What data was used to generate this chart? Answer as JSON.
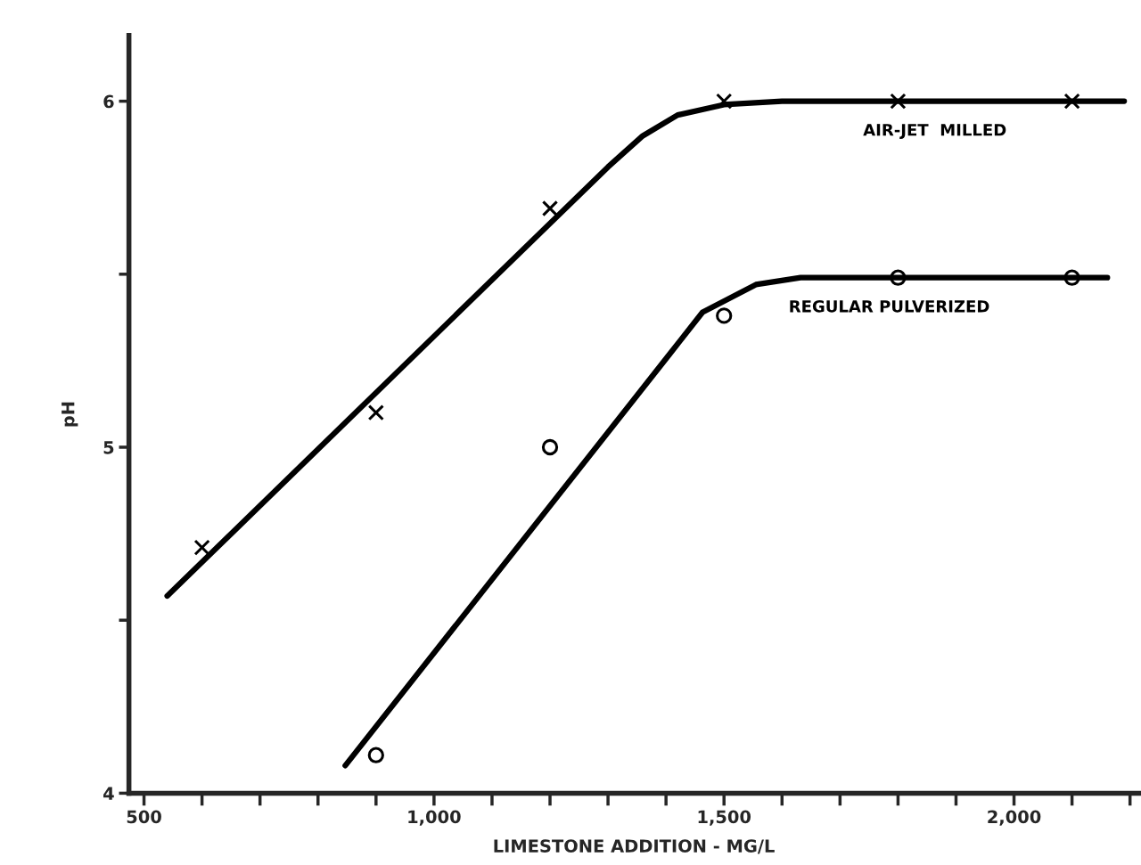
{
  "chart_data": {
    "type": "scatter",
    "xlabel": "LIMESTONE ADDITION - MG/L",
    "ylabel": "pH",
    "xlim": [
      474,
      2215
    ],
    "ylim": [
      4,
      6.19
    ],
    "xticks": [
      {
        "value": 500,
        "label": "500"
      },
      {
        "value": 600,
        "label": null
      },
      {
        "value": 700,
        "label": null
      },
      {
        "value": 800,
        "label": null
      },
      {
        "value": 900,
        "label": null
      },
      {
        "value": 1000,
        "label": "1,000"
      },
      {
        "value": 1100,
        "label": null
      },
      {
        "value": 1200,
        "label": null
      },
      {
        "value": 1300,
        "label": null
      },
      {
        "value": 1400,
        "label": null
      },
      {
        "value": 1500,
        "label": "1,500"
      },
      {
        "value": 1600,
        "label": null
      },
      {
        "value": 1700,
        "label": null
      },
      {
        "value": 1800,
        "label": null
      },
      {
        "value": 1900,
        "label": null
      },
      {
        "value": 2000,
        "label": "2,000"
      },
      {
        "value": 2100,
        "label": null
      },
      {
        "value": 2200,
        "label": null
      }
    ],
    "yticks": [
      4,
      {
        "value": 4.5,
        "label": null
      },
      5,
      {
        "value": 5.5,
        "label": null
      },
      6
    ],
    "grid": false,
    "legend": false,
    "series": [
      {
        "marker": "cross",
        "color": "#000000",
        "x": [
          600,
          900,
          1200,
          1500,
          1800,
          2100
        ],
        "values": [
          4.71,
          5.1,
          5.69,
          6.0,
          6.0,
          6.0
        ]
      },
      {
        "type": "line",
        "name": "AIR-JET  MILLED",
        "color": "#000000",
        "x": [
          540,
          1300,
          1360,
          1420,
          1500,
          1600,
          2190
        ],
        "values": [
          4.57,
          5.81,
          5.9,
          5.96,
          5.99,
          6.0,
          6.0
        ]
      },
      {
        "marker": "circle",
        "color": "#000000",
        "x": [
          900,
          1200,
          1500,
          1800,
          2100
        ],
        "values": [
          4.11,
          5.0,
          5.38,
          5.49,
          5.49
        ]
      },
      {
        "type": "line",
        "name": "REGULAR PULVERIZED",
        "color": "#000000",
        "x": [
          847,
          1402,
          1463,
          1555,
          1632,
          1785,
          2161
        ],
        "values": [
          4.08,
          5.26,
          5.39,
          5.47,
          5.49,
          5.49,
          5.49
        ]
      }
    ]
  }
}
